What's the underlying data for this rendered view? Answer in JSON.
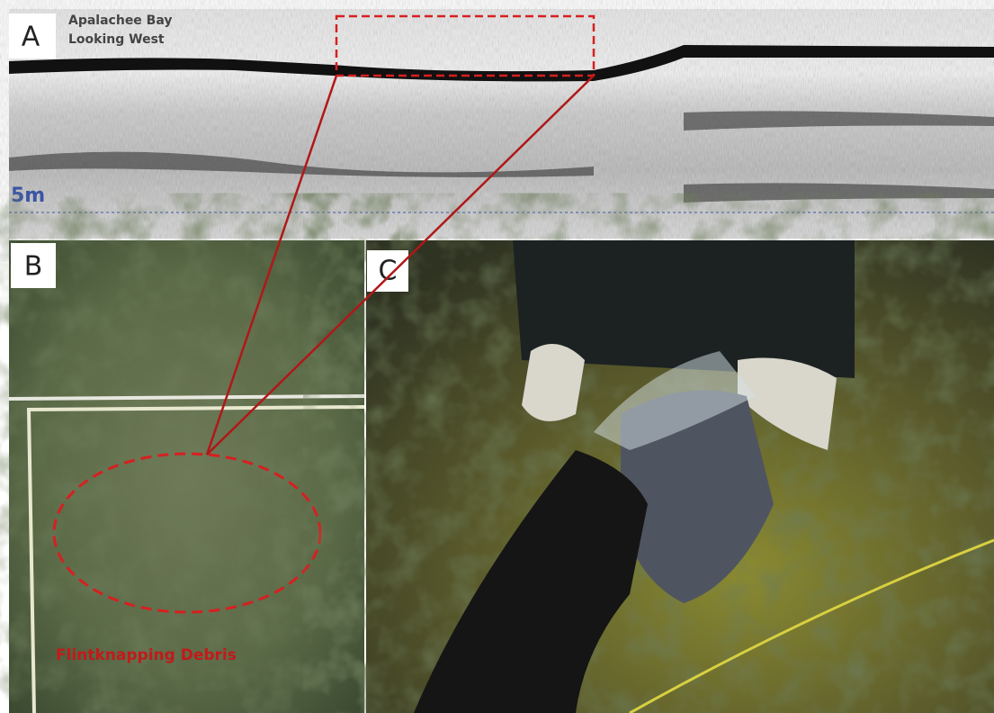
{
  "panel_a": {
    "label": "A",
    "location": "Apalachee Bay",
    "direction": "Looking West",
    "depth_label": "5m"
  },
  "panel_b": {
    "label": "B",
    "annotation": "Flintknapping Debris"
  },
  "panel_c": {
    "label": "C"
  }
}
